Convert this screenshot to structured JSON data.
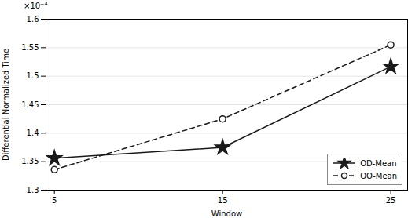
{
  "chart_data": {
    "type": "line",
    "x": [
      5,
      15,
      25
    ],
    "series": [
      {
        "name": "OD-Mean",
        "color": "#1a1a1a",
        "marker": "star",
        "line_style": "solid",
        "values": [
          0.0001356,
          0.0001375,
          0.0001517
        ]
      },
      {
        "name": "OO-Mean",
        "color": "#1a1a1a",
        "marker": "circle",
        "line_style": "dashed",
        "values": [
          0.0001336,
          0.0001425,
          0.0001555
        ]
      }
    ],
    "xlabel": "Window",
    "ylabel": "Differential Normalized Time",
    "annotation": "×10⁻⁴",
    "xlim": [
      4.5,
      26
    ],
    "xticks": [
      5,
      15,
      25
    ],
    "ylim": [
      0.00013,
      0.00016
    ],
    "yticks": [
      {
        "value": 0.00013,
        "label": "1.3"
      },
      {
        "value": 0.000135,
        "label": "1.35"
      },
      {
        "value": 0.00014,
        "label": "1.4"
      },
      {
        "value": 0.000145,
        "label": "1.45"
      },
      {
        "value": 0.00015,
        "label": "1.5"
      },
      {
        "value": 0.000155,
        "label": "1.55"
      },
      {
        "value": 0.00016,
        "label": "1.6"
      }
    ],
    "grid": "y",
    "legend": "lower right"
  }
}
